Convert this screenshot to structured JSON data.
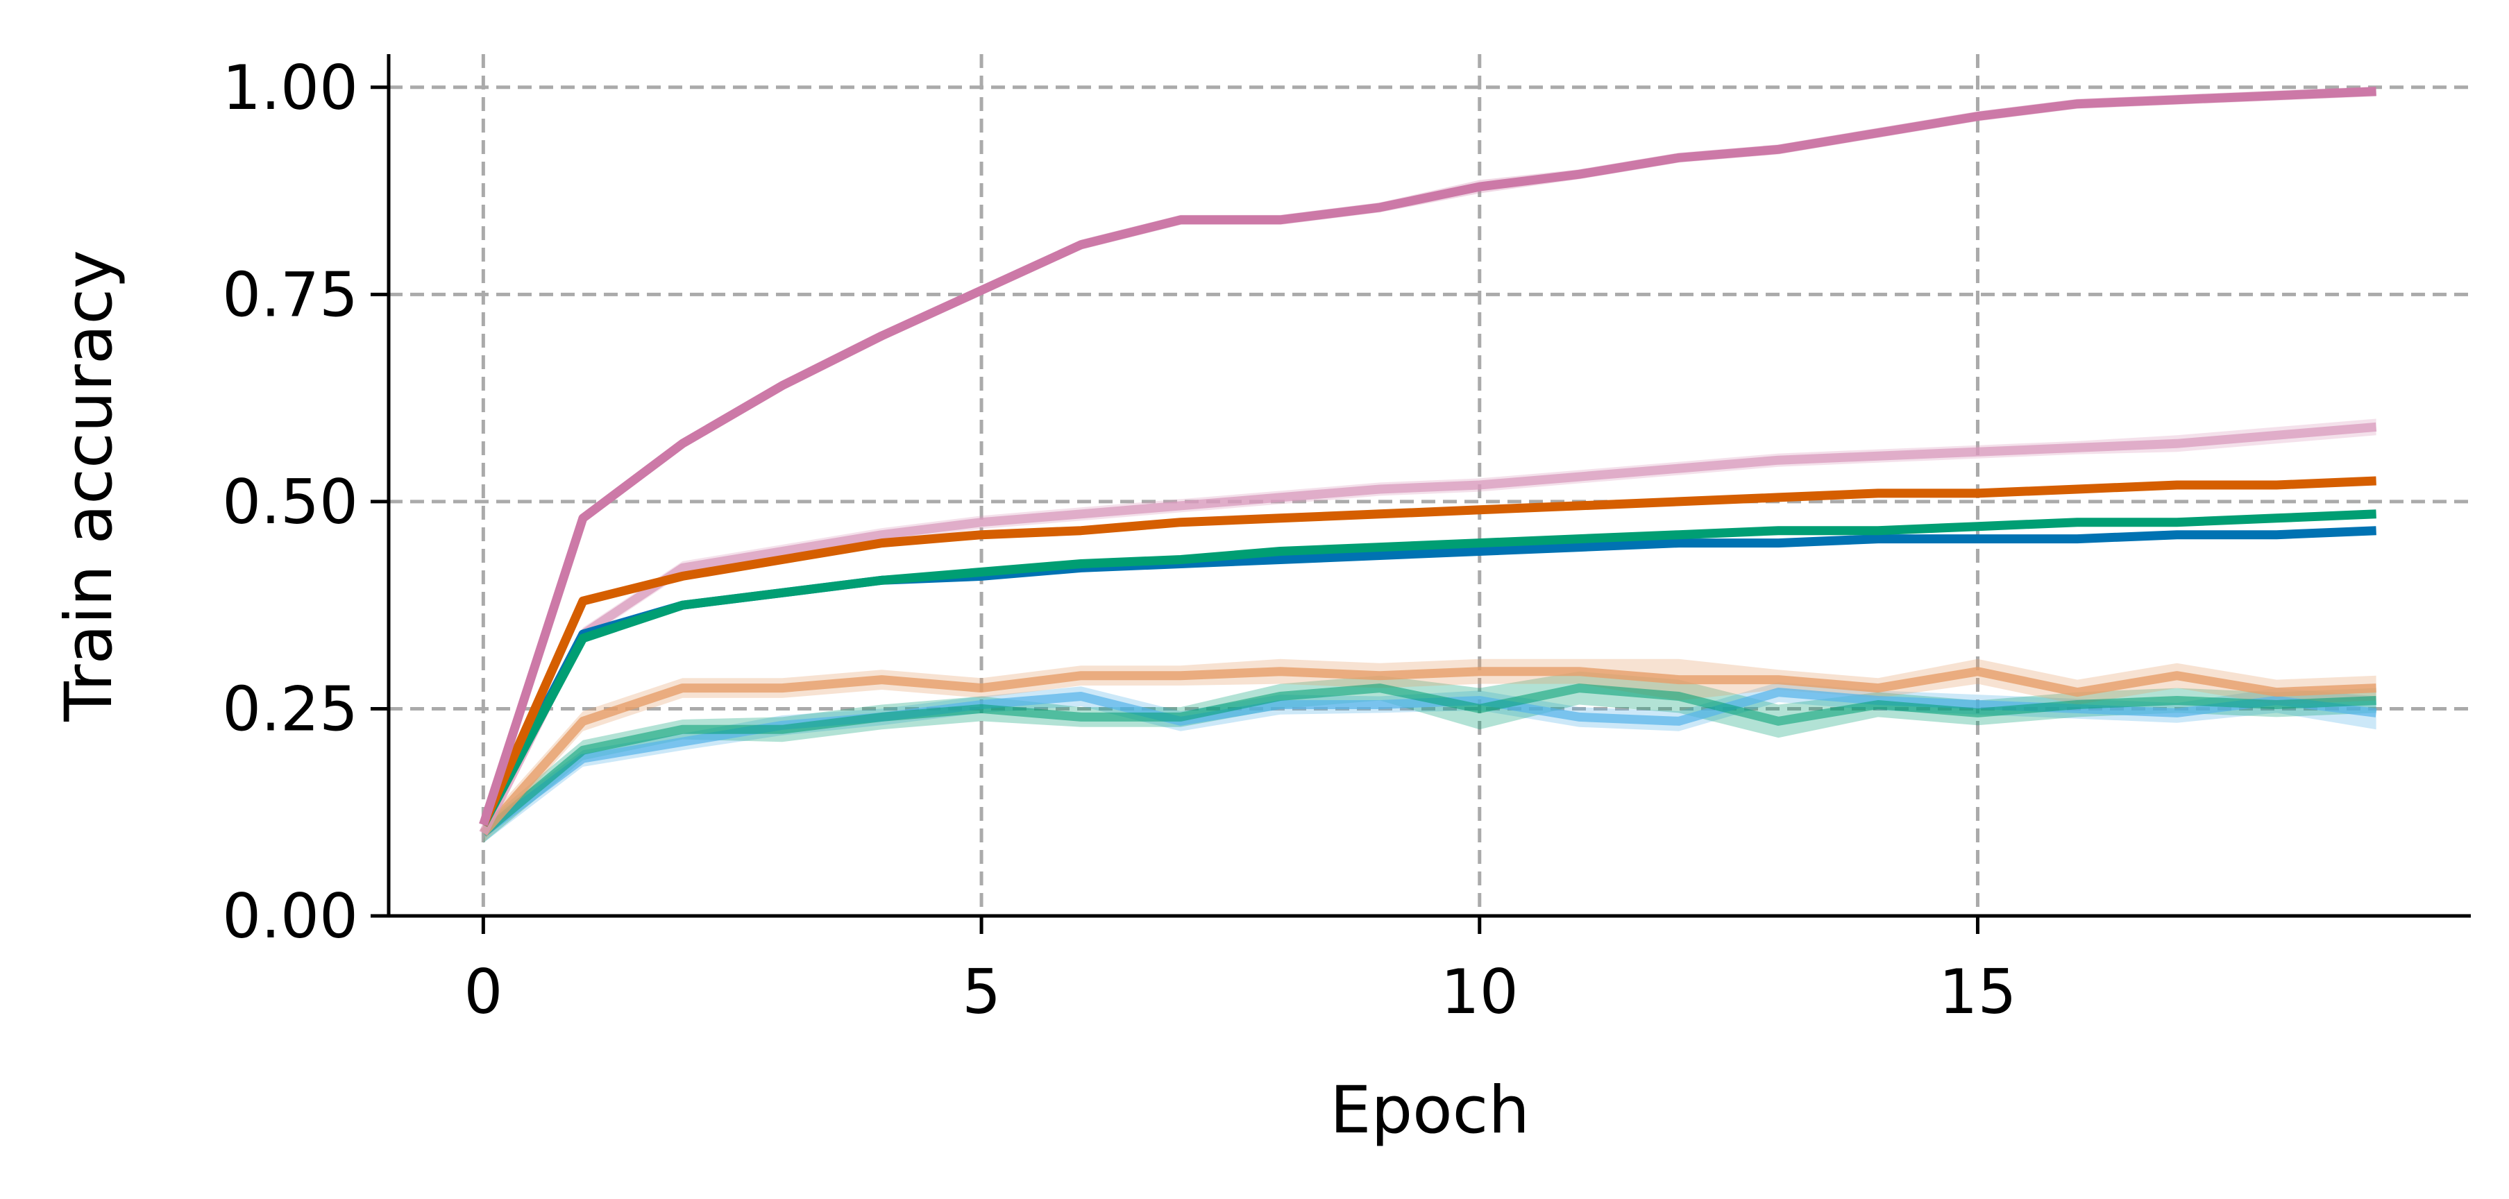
{
  "chart_data": {
    "type": "line",
    "title": "",
    "xlabel": "Epoch",
    "ylabel": "Train accuracy",
    "xlim": [
      -0.95,
      19.95
    ],
    "ylim": [
      0,
      1.04
    ],
    "xticks": [
      0,
      5,
      10,
      15
    ],
    "xtick_labels": [
      "0",
      "5",
      "10",
      "15"
    ],
    "yticks": [
      0,
      0.25,
      0.5,
      0.75,
      1.0
    ],
    "ytick_labels": [
      "0.00",
      "0.25",
      "0.50",
      "0.75",
      "1.00"
    ],
    "grid": true,
    "legend": "none",
    "x": [
      0,
      1,
      2,
      3,
      4,
      5,
      6,
      7,
      8,
      9,
      10,
      11,
      12,
      13,
      14,
      15,
      16,
      17,
      18,
      19
    ],
    "series": [
      {
        "color": "#56B4E9",
        "opacity": 0.7,
        "values": [
          0.1,
          0.19,
          0.21,
          0.23,
          0.24,
          0.255,
          0.265,
          0.235,
          0.255,
          0.255,
          0.26,
          0.24,
          0.235,
          0.27,
          0.26,
          0.255,
          0.25,
          0.245,
          0.26,
          0.245
        ],
        "band": [
          0.012,
          0.01,
          0.01,
          0.012,
          0.01,
          0.01,
          0.012,
          0.012,
          0.012,
          0.01,
          0.012,
          0.012,
          0.012,
          0.012,
          0.012,
          0.012,
          0.012,
          0.012,
          0.015,
          0.02
        ]
      },
      {
        "color": "#009E73",
        "opacity": 0.55,
        "values": [
          0.1,
          0.2,
          0.225,
          0.225,
          0.24,
          0.25,
          0.24,
          0.24,
          0.265,
          0.275,
          0.25,
          0.275,
          0.265,
          0.235,
          0.255,
          0.245,
          0.255,
          0.26,
          0.255,
          0.26
        ],
        "band": [
          0.012,
          0.012,
          0.012,
          0.015,
          0.015,
          0.015,
          0.012,
          0.012,
          0.015,
          0.015,
          0.025,
          0.02,
          0.02,
          0.02,
          0.015,
          0.015,
          0.015,
          0.015,
          0.015,
          0.015
        ]
      },
      {
        "color": "#E69F6A",
        "opacity": 0.8,
        "values": [
          0.1,
          0.235,
          0.275,
          0.275,
          0.285,
          0.275,
          0.29,
          0.29,
          0.295,
          0.29,
          0.295,
          0.295,
          0.285,
          0.285,
          0.275,
          0.295,
          0.27,
          0.29,
          0.27,
          0.275
        ],
        "band": [
          0.012,
          0.012,
          0.012,
          0.012,
          0.012,
          0.012,
          0.012,
          0.012,
          0.015,
          0.015,
          0.015,
          0.015,
          0.025,
          0.012,
          0.012,
          0.015,
          0.015,
          0.015,
          0.015,
          0.015
        ]
      },
      {
        "color": "#D99BBE",
        "opacity": 0.75,
        "values": [
          0.1,
          0.34,
          0.42,
          0.44,
          0.46,
          0.475,
          0.485,
          0.495,
          0.505,
          0.515,
          0.52,
          0.53,
          0.54,
          0.55,
          0.555,
          0.56,
          0.565,
          0.57,
          0.58,
          0.59
        ],
        "band": [
          0.008,
          0.008,
          0.008,
          0.008,
          0.008,
          0.008,
          0.008,
          0.008,
          0.008,
          0.008,
          0.008,
          0.008,
          0.008,
          0.008,
          0.008,
          0.008,
          0.008,
          0.01,
          0.01,
          0.01
        ]
      },
      {
        "color": "#0072B2",
        "opacity": 1.0,
        "values": [
          0.11,
          0.34,
          0.375,
          0.39,
          0.405,
          0.41,
          0.42,
          0.425,
          0.43,
          0.435,
          0.44,
          0.445,
          0.45,
          0.45,
          0.455,
          0.455,
          0.455,
          0.46,
          0.46,
          0.465
        ],
        "band": [
          0.004,
          0.004,
          0.004,
          0.004,
          0.004,
          0.004,
          0.004,
          0.004,
          0.004,
          0.004,
          0.004,
          0.004,
          0.004,
          0.004,
          0.004,
          0.004,
          0.004,
          0.004,
          0.004,
          0.004
        ]
      },
      {
        "color": "#009E73",
        "opacity": 1.0,
        "values": [
          0.11,
          0.335,
          0.375,
          0.39,
          0.405,
          0.415,
          0.425,
          0.43,
          0.44,
          0.445,
          0.45,
          0.455,
          0.46,
          0.465,
          0.465,
          0.47,
          0.475,
          0.475,
          0.48,
          0.485
        ],
        "band": [
          0.004,
          0.004,
          0.004,
          0.004,
          0.004,
          0.004,
          0.004,
          0.004,
          0.004,
          0.004,
          0.004,
          0.004,
          0.004,
          0.004,
          0.004,
          0.004,
          0.004,
          0.004,
          0.004,
          0.004
        ]
      },
      {
        "color": "#D55E00",
        "opacity": 1.0,
        "values": [
          0.11,
          0.38,
          0.41,
          0.43,
          0.45,
          0.46,
          0.465,
          0.475,
          0.48,
          0.485,
          0.49,
          0.495,
          0.5,
          0.505,
          0.51,
          0.51,
          0.515,
          0.52,
          0.52,
          0.525
        ],
        "band": [
          0.004,
          0.004,
          0.004,
          0.004,
          0.004,
          0.004,
          0.004,
          0.004,
          0.004,
          0.004,
          0.004,
          0.004,
          0.004,
          0.004,
          0.004,
          0.004,
          0.004,
          0.004,
          0.004,
          0.004
        ]
      },
      {
        "color": "#CC79A7",
        "opacity": 1.0,
        "values": [
          0.11,
          0.48,
          0.57,
          0.64,
          0.7,
          0.755,
          0.81,
          0.84,
          0.84,
          0.855,
          0.88,
          0.895,
          0.915,
          0.925,
          0.945,
          0.965,
          0.98,
          0.985,
          0.99,
          0.995
        ],
        "band": [
          0.004,
          0.004,
          0.004,
          0.004,
          0.004,
          0.004,
          0.006,
          0.006,
          0.006,
          0.006,
          0.008,
          0.006,
          0.006,
          0.006,
          0.006,
          0.006,
          0.006,
          0.006,
          0.006,
          0.006
        ]
      }
    ]
  }
}
